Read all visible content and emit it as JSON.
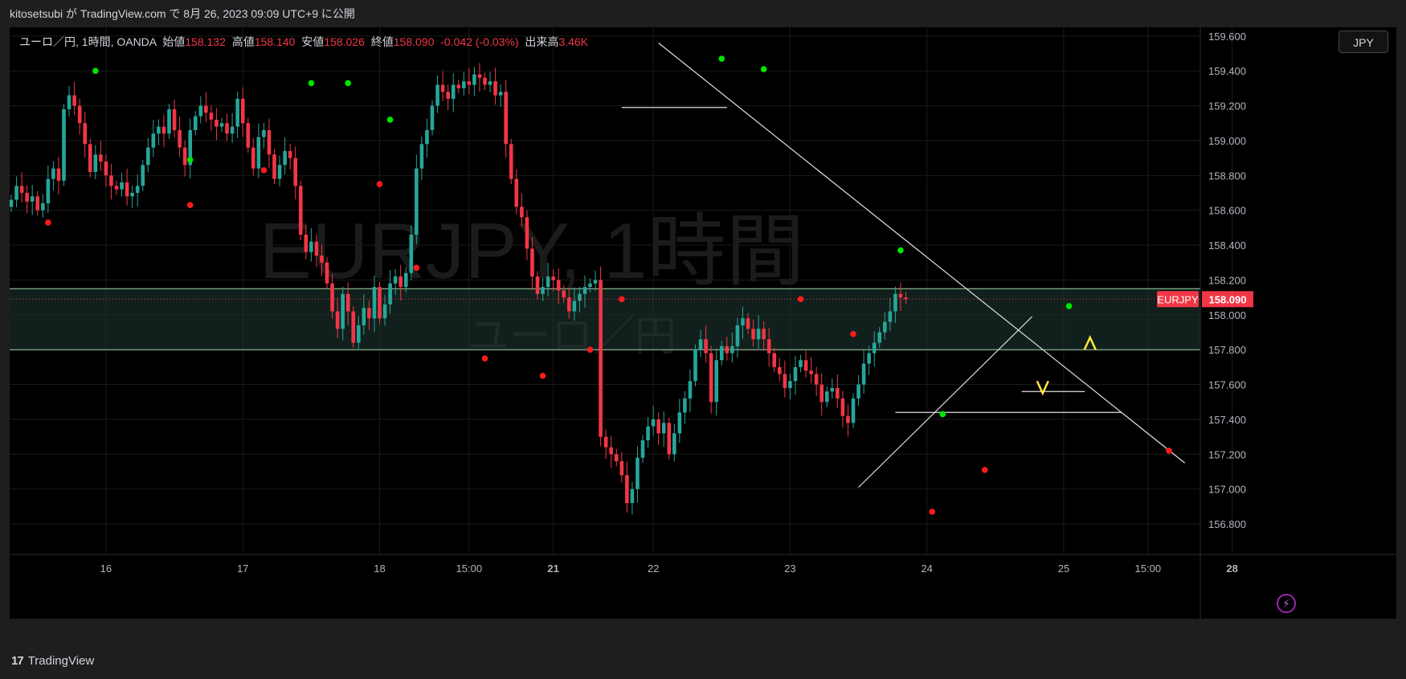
{
  "header": {
    "publish_text": "kitosetsubi が TradingView.com で 8月 26, 2023 09:09 UTC+9 に公開"
  },
  "legend": {
    "symbol": "ユーロ／円, 1時間, OANDA",
    "open_label": "始値",
    "open": "158.132",
    "high_label": "高値",
    "high": "158.140",
    "low_label": "安値",
    "low": "158.026",
    "close_label": "終値",
    "close": "158.090",
    "change": "-0.042 (-0.03%)",
    "volume_label": "出来高",
    "volume": "3.46K"
  },
  "currency_button": "JPY",
  "watermark": {
    "main": "EURJPY, 1時間",
    "sub": "ユーロ／円"
  },
  "price_tag": {
    "symbol": "EURJPY",
    "price": "158.090"
  },
  "footer": {
    "brand": "TradingView",
    "logo": "17"
  },
  "colors": {
    "up": "#26a69a",
    "down": "#f23645",
    "marker_high": "#00e600",
    "marker_low": "#ff1a1a",
    "zone": "#1f3a33",
    "zone_line": "#a5d6a7"
  },
  "chart_data": {
    "type": "candlestick",
    "symbol": "EURJPY",
    "timeframe": "1時間",
    "y_ticks": [
      "159.600",
      "159.400",
      "159.200",
      "159.000",
      "158.800",
      "158.600",
      "158.400",
      "158.200",
      "158.000",
      "157.800",
      "157.600",
      "157.400",
      "157.200",
      "157.000",
      "156.800"
    ],
    "ylim": [
      156.625,
      159.65
    ],
    "x_ticks": [
      {
        "label": "16",
        "i": 18
      },
      {
        "label": "17",
        "i": 44
      },
      {
        "label": "18",
        "i": 70
      },
      {
        "label": "15:00",
        "i": 87
      },
      {
        "label": "21",
        "i": 103,
        "bold": true
      },
      {
        "label": "22",
        "i": 122
      },
      {
        "label": "23",
        "i": 148
      },
      {
        "label": "24",
        "i": 174
      },
      {
        "label": "25",
        "i": 200
      },
      {
        "label": "15:00",
        "i": 216
      },
      {
        "label": "28",
        "i": 232,
        "bold": true
      }
    ],
    "last_price": 158.09,
    "zone": [
      157.8,
      158.15
    ],
    "closes": [
      158.66,
      158.74,
      158.7,
      158.65,
      158.68,
      158.6,
      158.64,
      158.78,
      158.84,
      158.77,
      159.18,
      159.26,
      159.2,
      159.1,
      158.98,
      158.82,
      158.92,
      158.88,
      158.8,
      158.74,
      158.72,
      158.76,
      158.68,
      158.7,
      158.74,
      158.86,
      158.96,
      159.04,
      159.08,
      159.04,
      159.18,
      159.06,
      158.96,
      158.86,
      159.06,
      159.14,
      159.2,
      159.16,
      159.12,
      159.08,
      159.1,
      159.04,
      159.08,
      159.24,
      159.1,
      158.96,
      158.84,
      159.02,
      159.06,
      158.92,
      158.78,
      158.86,
      158.94,
      158.9,
      158.74,
      158.46,
      158.36,
      158.42,
      158.34,
      158.3,
      158.18,
      158.02,
      157.92,
      158.12,
      158.02,
      157.84,
      157.94,
      158.04,
      157.98,
      158.16,
      157.98,
      158.06,
      158.18,
      158.22,
      158.16,
      158.24,
      158.46,
      158.84,
      158.98,
      159.06,
      159.2,
      159.32,
      159.28,
      159.24,
      159.32,
      159.3,
      159.34,
      159.32,
      159.38,
      159.36,
      159.32,
      159.34,
      159.26,
      159.28,
      158.98,
      158.78,
      158.62,
      158.56,
      158.38,
      158.22,
      158.12,
      158.16,
      158.22,
      158.2,
      158.14,
      158.1,
      158.02,
      158.08,
      158.12,
      158.16,
      158.18,
      158.2,
      157.3,
      157.24,
      157.2,
      157.16,
      157.08,
      156.92,
      157.0,
      157.18,
      157.28,
      157.36,
      157.4,
      157.32,
      157.38,
      157.2,
      157.32,
      157.44,
      157.52,
      157.62,
      157.8,
      157.86,
      157.78,
      157.5,
      157.74,
      157.82,
      157.78,
      157.82,
      157.94,
      157.98,
      157.92,
      157.86,
      157.92,
      157.86,
      157.78,
      157.7,
      157.66,
      157.58,
      157.62,
      157.7,
      157.74,
      157.68,
      157.66,
      157.6,
      157.5,
      157.56,
      157.58,
      157.52,
      157.42,
      157.38,
      157.52,
      157.6,
      157.72,
      157.78,
      157.84,
      157.9,
      157.96,
      158.02,
      158.12,
      158.1,
      158.09
    ],
    "highs": [
      {
        "i": 16,
        "price": 159.4
      },
      {
        "i": 57,
        "price": 159.33
      },
      {
        "i": 64,
        "price": 159.33
      },
      {
        "i": 72,
        "price": 159.12
      },
      {
        "i": 34,
        "price": 158.89
      },
      {
        "i": 135,
        "price": 159.47
      },
      {
        "i": 143,
        "price": 159.41
      },
      {
        "i": 169,
        "price": 158.37
      },
      {
        "i": 177,
        "price": 157.43
      },
      {
        "i": 201,
        "price": 158.05
      }
    ],
    "lows": [
      {
        "i": 7,
        "price": 158.53
      },
      {
        "i": 34,
        "price": 158.63
      },
      {
        "i": 48,
        "price": 158.83
      },
      {
        "i": 70,
        "price": 158.75
      },
      {
        "i": 77,
        "price": 158.27
      },
      {
        "i": 90,
        "price": 157.75
      },
      {
        "i": 101,
        "price": 157.65
      },
      {
        "i": 110,
        "price": 157.8
      },
      {
        "i": 116,
        "price": 158.09
      },
      {
        "i": 150,
        "price": 158.09
      },
      {
        "i": 160,
        "price": 157.89
      },
      {
        "i": 175,
        "price": 156.87
      },
      {
        "i": 185,
        "price": 157.11
      },
      {
        "i": 220,
        "price": 157.22
      }
    ]
  }
}
